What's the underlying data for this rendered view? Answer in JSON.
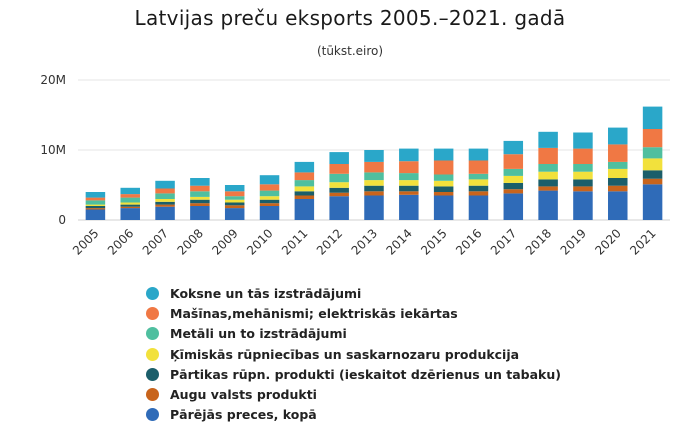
{
  "header": {
    "title": "Latvijas preču eksports 2005.–2021. gadā",
    "subtitle": "(tūkst.eiro)"
  },
  "chart_data": {
    "type": "bar",
    "stacked": true,
    "title": "Latvijas preču eksports 2005.–2021. gadā",
    "subtitle": "(tūkst.eiro)",
    "xlabel": "",
    "ylabel": "",
    "ylim": [
      0,
      20000000
    ],
    "yticks": [
      0,
      10000000,
      20000000
    ],
    "ytick_labels": [
      "0",
      "10M",
      "20M"
    ],
    "grid": true,
    "legend_position": "bottom",
    "categories": [
      "2005",
      "2006",
      "2007",
      "2008",
      "2009",
      "2010",
      "2011",
      "2012",
      "2013",
      "2014",
      "2015",
      "2016",
      "2017",
      "2018",
      "2019",
      "2020",
      "2021"
    ],
    "series": [
      {
        "name": "Pārējās preces, kopā",
        "color": "#2f6bb8",
        "values": [
          1500000,
          1700000,
          1900000,
          2000000,
          1700000,
          2000000,
          3000000,
          3400000,
          3500000,
          3600000,
          3500000,
          3500000,
          3800000,
          4200000,
          4100000,
          4100000,
          5100000
        ]
      },
      {
        "name": "Augu valsts produkti",
        "color": "#c8641c",
        "values": [
          200000,
          200000,
          300000,
          400000,
          400000,
          400000,
          500000,
          500000,
          600000,
          500000,
          500000,
          600000,
          600000,
          600000,
          700000,
          800000,
          800000
        ]
      },
      {
        "name": "Pārtikas rūpn. produkti (ieskaitot dzērienus un tabaku)",
        "color": "#1b5e6a",
        "values": [
          300000,
          300000,
          400000,
          500000,
          400000,
          500000,
          600000,
          700000,
          800000,
          800000,
          800000,
          800000,
          900000,
          1000000,
          1000000,
          1100000,
          1200000
        ]
      },
      {
        "name": "Ķīmiskās rūpniecības un saskarnozaru produkcija",
        "color": "#f2e13c",
        "values": [
          200000,
          300000,
          400000,
          400000,
          400000,
          500000,
          700000,
          800000,
          800000,
          800000,
          800000,
          900000,
          1000000,
          1100000,
          1100000,
          1300000,
          1700000
        ]
      },
      {
        "name": "Metāli un to izstrādājumi",
        "color": "#4fbf9f",
        "values": [
          600000,
          700000,
          800000,
          800000,
          500000,
          800000,
          900000,
          1200000,
          1100000,
          1000000,
          900000,
          800000,
          1000000,
          1100000,
          1100000,
          1000000,
          1600000
        ]
      },
      {
        "name": "Mašīnas,mehānismi; elektriskās iekārtas",
        "color": "#f07844",
        "values": [
          400000,
          500000,
          700000,
          800000,
          700000,
          900000,
          1100000,
          1400000,
          1500000,
          1700000,
          2000000,
          1900000,
          2100000,
          2300000,
          2200000,
          2500000,
          2600000
        ]
      },
      {
        "name": "Koksne un tās izstrādājumi",
        "color": "#2aa7c9",
        "values": [
          800000,
          900000,
          1100000,
          1100000,
          900000,
          1300000,
          1500000,
          1700000,
          1700000,
          1800000,
          1700000,
          1700000,
          1900000,
          2300000,
          2300000,
          2400000,
          3200000
        ]
      }
    ]
  },
  "legend": {
    "items": [
      {
        "label": "Koksne un tās izstrādājumi",
        "color": "#2aa7c9"
      },
      {
        "label": "Mašīnas,mehānismi; elektriskās iekārtas",
        "color": "#f07844"
      },
      {
        "label": "Metāli un to izstrādājumi",
        "color": "#4fbf9f"
      },
      {
        "label": "Ķīmiskās rūpniecības un saskarnozaru produkcija",
        "color": "#f2e13c"
      },
      {
        "label": "Pārtikas rūpn. produkti (ieskaitot dzērienus un tabaku)",
        "color": "#1b5e6a"
      },
      {
        "label": "Augu valsts produkti",
        "color": "#c8641c"
      },
      {
        "label": "Pārējās preces, kopā",
        "color": "#2f6bb8"
      }
    ]
  }
}
